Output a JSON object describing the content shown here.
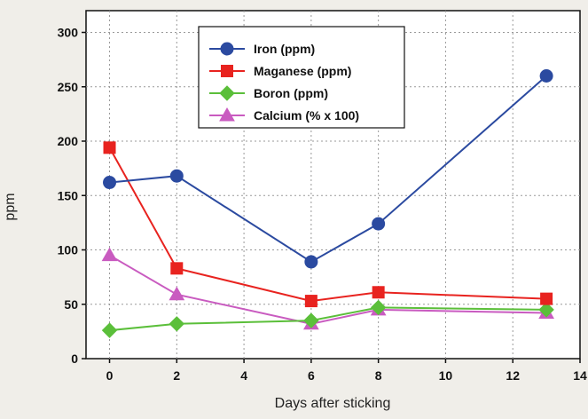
{
  "chart_data": {
    "type": "line",
    "xlabel": "Days after sticking",
    "ylabel": "ppm",
    "xlim": [
      -0.7,
      14
    ],
    "ylim": [
      0,
      320
    ],
    "xticks": [
      0,
      2,
      4,
      6,
      8,
      10,
      12,
      14
    ],
    "yticks": [
      0,
      50,
      100,
      150,
      200,
      250,
      300
    ],
    "grid": true,
    "legend_position": "top-center",
    "x": [
      0,
      2,
      6,
      8,
      13
    ],
    "series": [
      {
        "name": "Iron (ppm)",
        "color": "#2b4aa0",
        "marker": "circle",
        "values": [
          162,
          168,
          89,
          124,
          260
        ]
      },
      {
        "name": "Maganese (ppm)",
        "color": "#e8231f",
        "marker": "square",
        "values": [
          194,
          83,
          53,
          61,
          55
        ]
      },
      {
        "name": "Boron (ppm)",
        "color": "#5bbf3a",
        "marker": "diamond",
        "values": [
          26,
          32,
          35,
          47,
          45
        ]
      },
      {
        "name": "Calcium (% x 100)",
        "color": "#c95bc0",
        "marker": "triangle",
        "values": [
          95,
          59,
          32,
          45,
          42
        ]
      }
    ]
  }
}
